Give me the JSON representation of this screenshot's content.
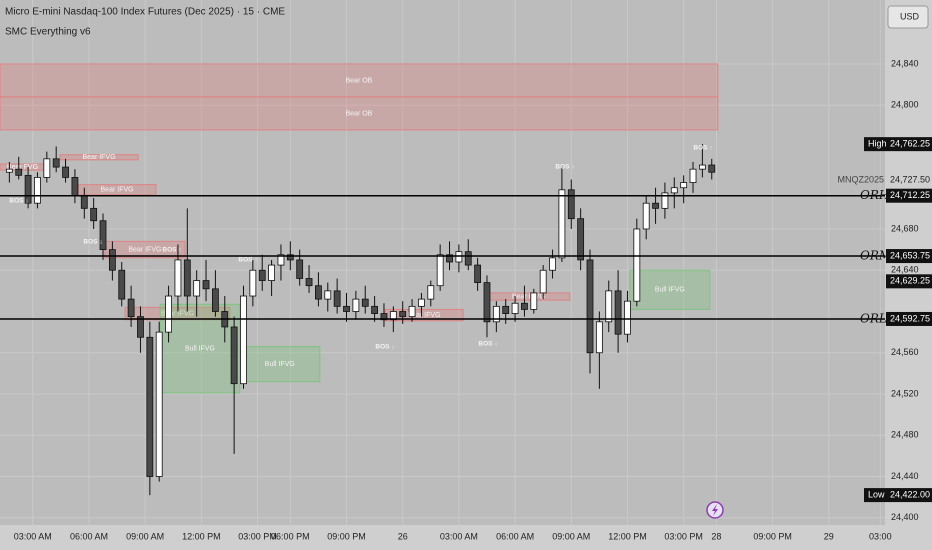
{
  "title": "Micro E-mini Nasdaq-100 Index Futures (Dec 2025) · 15 · CME",
  "subtitle": "SMC Everything v6",
  "currency": "USD",
  "chart_data": {
    "type": "candlestick",
    "up_color": "#ffffff",
    "down_color": "#4a4a4a",
    "wick_color": "#111111",
    "xlim": [
      0,
      189
    ],
    "ylim": [
      24393,
      24902
    ],
    "xticks": [
      {
        "value": 7,
        "label": "03:00 AM"
      },
      {
        "value": 19,
        "label": "06:00 AM"
      },
      {
        "value": 31,
        "label": "09:00 AM"
      },
      {
        "value": 43,
        "label": "12:00 PM"
      },
      {
        "value": 55,
        "label": "03:00 PM"
      },
      {
        "value": 62,
        "label": "06:00 PM"
      },
      {
        "value": 74,
        "label": "09:00 PM"
      },
      {
        "value": 86,
        "label": "26"
      },
      {
        "value": 98,
        "label": "03:00 AM"
      },
      {
        "value": 110,
        "label": "06:00 AM"
      },
      {
        "value": 122,
        "label": "09:00 AM"
      },
      {
        "value": 134,
        "label": "12:00 PM"
      },
      {
        "value": 146,
        "label": "03:00 PM"
      },
      {
        "value": 153,
        "label": "28"
      },
      {
        "value": 165,
        "label": "09:00 PM"
      },
      {
        "value": 177,
        "label": "29"
      },
      {
        "value": 188,
        "label": "03:00"
      }
    ],
    "yticks": [
      {
        "value": 24400,
        "label": "24,400"
      },
      {
        "value": 24440,
        "label": "24,440"
      },
      {
        "value": 24480,
        "label": "24,480"
      },
      {
        "value": 24520,
        "label": "24,520"
      },
      {
        "value": 24560,
        "label": "24,560"
      },
      {
        "value": 24640,
        "label": "24,640"
      },
      {
        "value": 24680,
        "label": "24,680"
      },
      {
        "value": 24800,
        "label": "24,800"
      },
      {
        "value": 24840,
        "label": "24,840"
      }
    ],
    "x": [
      2,
      4,
      6,
      8,
      10,
      12,
      14,
      16,
      18,
      20,
      22,
      24,
      26,
      28,
      30,
      32,
      34,
      36,
      38,
      40,
      42,
      44,
      46,
      48,
      50,
      52,
      54,
      56,
      58,
      60,
      62,
      64,
      66,
      68,
      70,
      72,
      74,
      76,
      78,
      80,
      82,
      84,
      86,
      88,
      90,
      92,
      94,
      96,
      98,
      100,
      102,
      104,
      106,
      108,
      110,
      112,
      114,
      116,
      118,
      120,
      122,
      124,
      126,
      128,
      130,
      132,
      134,
      136,
      138,
      140,
      142,
      144,
      146,
      148,
      150,
      152
    ],
    "open": [
      24735,
      24738,
      24732,
      24705,
      24730,
      24748,
      24740,
      24730,
      24712,
      24700,
      24688,
      24660,
      24640,
      24612,
      24595,
      24575,
      24440,
      24580,
      24615,
      24650,
      24615,
      24630,
      24622,
      24600,
      24585,
      24530,
      24615,
      24640,
      24630,
      24645,
      24655,
      24650,
      24632,
      24625,
      24612,
      24620,
      24605,
      24600,
      24612,
      24605,
      24598,
      24592,
      24600,
      24595,
      24605,
      24612,
      24625,
      24655,
      24648,
      24658,
      24645,
      24628,
      24590,
      24605,
      24598,
      24608,
      24602,
      24618,
      24640,
      24652,
      24718,
      24690,
      24650,
      24560,
      24590,
      24620,
      24578,
      24610,
      24680,
      24705,
      24700,
      24715,
      24720,
      24725,
      24738,
      24742
    ],
    "high": [
      24745,
      24750,
      24740,
      24735,
      24755,
      24760,
      24748,
      24738,
      24720,
      24710,
      24695,
      24668,
      24648,
      24625,
      24605,
      24590,
      24590,
      24625,
      24665,
      24700,
      24640,
      24650,
      24640,
      24615,
      24595,
      24625,
      24650,
      24655,
      24650,
      24665,
      24668,
      24660,
      24645,
      24638,
      24628,
      24632,
      24618,
      24620,
      24625,
      24615,
      24608,
      24605,
      24610,
      24612,
      24618,
      24630,
      24665,
      24668,
      24665,
      24670,
      24652,
      24635,
      24610,
      24612,
      24615,
      24625,
      24622,
      24645,
      24660,
      24740,
      24728,
      24700,
      24660,
      24600,
      24630,
      24640,
      24620,
      24690,
      24712,
      24720,
      24725,
      24730,
      24732,
      24745,
      24762.25,
      24748
    ],
    "low": [
      24725,
      24728,
      24700,
      24700,
      24725,
      24735,
      24725,
      24705,
      24690,
      24680,
      24650,
      24630,
      24605,
      24585,
      24560,
      24422,
      24435,
      24570,
      24600,
      24600,
      24595,
      24610,
      24595,
      24570,
      24462,
      24525,
      24605,
      24620,
      24615,
      24630,
      24640,
      24625,
      24618,
      24605,
      24600,
      24598,
      24590,
      24592,
      24598,
      24590,
      24585,
      24580,
      24588,
      24590,
      24595,
      24605,
      24620,
      24640,
      24638,
      24640,
      24620,
      24575,
      24580,
      24588,
      24590,
      24595,
      24598,
      24612,
      24632,
      24648,
      24680,
      24640,
      24540,
      24525,
      24580,
      24560,
      24570,
      24605,
      24670,
      24685,
      24690,
      24700,
      24705,
      24715,
      24730,
      24728
    ],
    "close": [
      24738,
      24732,
      24705,
      24730,
      24748,
      24740,
      24730,
      24712,
      24700,
      24688,
      24660,
      24640,
      24612,
      24595,
      24575,
      24440,
      24580,
      24615,
      24650,
      24615,
      24630,
      24622,
      24600,
      24585,
      24530,
      24615,
      24640,
      24630,
      24645,
      24655,
      24650,
      24632,
      24625,
      24612,
      24620,
      24605,
      24600,
      24612,
      24605,
      24598,
      24592,
      24600,
      24595,
      24605,
      24612,
      24625,
      24655,
      24648,
      24658,
      24645,
      24628,
      24590,
      24605,
      24598,
      24608,
      24602,
      24618,
      24640,
      24652,
      24718,
      24690,
      24650,
      24560,
      24590,
      24620,
      24578,
      24610,
      24680,
      24705,
      24700,
      24715,
      24720,
      24725,
      24738,
      24742,
      24735
    ],
    "zones": [
      {
        "label": "Bear OB",
        "color": "#e08080",
        "x0": 0,
        "x1": 153.3,
        "top": 24840,
        "bottom": 24808
      },
      {
        "label": "Bear OB",
        "color": "#e08080",
        "x0": 0,
        "x1": 153.3,
        "top": 24808,
        "bottom": 24776
      },
      {
        "label": "Bear FVG",
        "color": "#e08080",
        "x0": 0,
        "x1": 9.6,
        "top": 24743,
        "bottom": 24737
      },
      {
        "label": "Bear IFVG",
        "color": "#e08080",
        "x0": 12.8,
        "x1": 29.5,
        "top": 24752,
        "bottom": 24747
      },
      {
        "label": "Bear IFVG",
        "color": "#e08080",
        "x0": 16.7,
        "x1": 33.3,
        "top": 24723,
        "bottom": 24713
      },
      {
        "label": "Bear IFVG",
        "color": "#e08080",
        "x0": 22.4,
        "x1": 39.5,
        "top": 24668,
        "bottom": 24652
      },
      {
        "label": "Bear IFVG",
        "color": "#e08080",
        "x0": 26.7,
        "x1": 49.1,
        "top": 24604,
        "bottom": 24592
      },
      {
        "label": "Bull IFVG",
        "color": "#7cc47c",
        "x0": 34.2,
        "x1": 51.2,
        "top": 24607,
        "bottom": 24521
      },
      {
        "label": "Bull IFVG",
        "color": "#7cc47c",
        "x0": 51.2,
        "x1": 68.3,
        "top": 24566,
        "bottom": 24532
      },
      {
        "label": "Bear IFVG",
        "color": "#e08080",
        "x0": 82.2,
        "x1": 98.9,
        "top": 24602,
        "bottom": 24591
      },
      {
        "label": "Bear IFVG",
        "color": "#e08080",
        "x0": 104,
        "x1": 121.7,
        "top": 24618,
        "bottom": 24611
      },
      {
        "label": "Bull IFVG",
        "color": "#7cc47c",
        "x0": 134.5,
        "x1": 151.6,
        "top": 24640,
        "bottom": 24602
      }
    ],
    "levels": [
      {
        "name": "ORH",
        "price": {
          "value": 24712.25,
          "label": "24,712.25"
        }
      },
      {
        "name": "ORM",
        "price": {
          "value": 24653.75,
          "label": "24,653.75"
        }
      },
      {
        "name": "ORL",
        "price": {
          "value": 24592.75,
          "label": "24,592.75"
        }
      }
    ],
    "markers": [
      {
        "name": "High",
        "price": {
          "value": 24762.25,
          "label": "24,762.25"
        }
      },
      {
        "name": "Low",
        "price": {
          "value": 24422,
          "label": "24,422.00"
        }
      }
    ],
    "last": {
      "name": "MNQZ2025",
      "price": {
        "value": 24727.5,
        "label": "24,727.50"
      }
    },
    "other_label": {
      "value": 24629.25,
      "label": "24,629.25"
    },
    "annotations": [
      "BOS ↓",
      "BOS ↓",
      "BOS ↑",
      "BOS ↑",
      "BOS ↓",
      "BOS ↓",
      "BOS ↑",
      "BOS ↑"
    ]
  }
}
